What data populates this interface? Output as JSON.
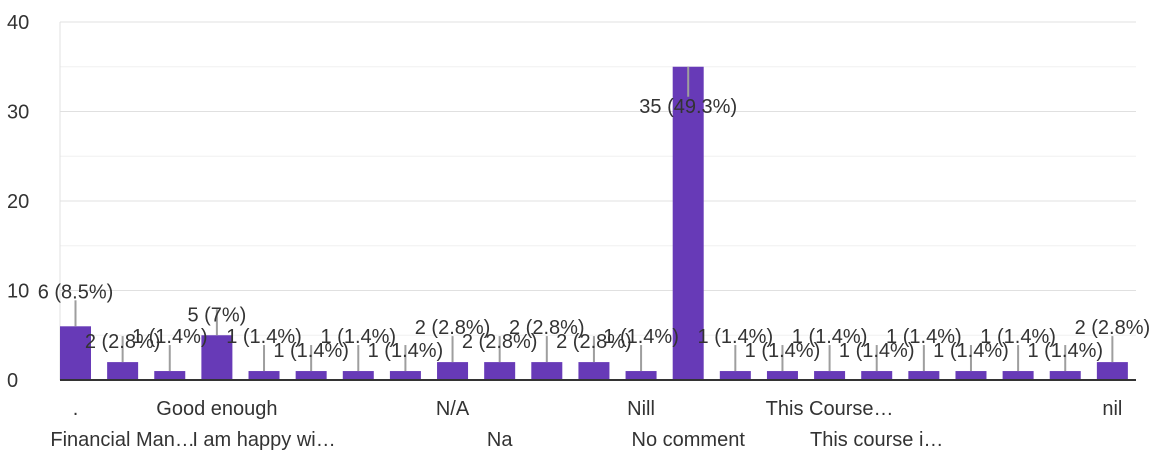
{
  "chart_data": {
    "type": "bar",
    "title": "",
    "xlabel": "",
    "ylabel": "",
    "ylim": [
      0,
      40
    ],
    "yticks": [
      0,
      10,
      20,
      30,
      40
    ],
    "grid": true,
    "bar_color": "#673ab7",
    "categories": [
      ".",
      "Financial Man…",
      "",
      "Good enough",
      "I am happy wi…",
      "",
      "",
      "",
      "N/A",
      "Na",
      "",
      "",
      "Nill",
      "No comment",
      "",
      "",
      "This Course…",
      "This course i…",
      "",
      "",
      "",
      "",
      "nil"
    ],
    "axis_category_labels": [
      ".",
      "Financial Man…",
      "Good enough",
      "I am happy wi…",
      "N/A",
      "Na",
      "Nill",
      "No comment",
      "This Course…",
      "This course i…",
      "nil"
    ],
    "values": [
      6,
      2,
      1,
      5,
      1,
      1,
      1,
      1,
      2,
      2,
      2,
      2,
      1,
      35,
      1,
      1,
      1,
      1,
      1,
      1,
      1,
      1,
      2
    ],
    "data_labels": [
      "6 (8.5%)",
      "2 (2.8%)",
      "1 (1.4%)",
      "5 (7%)",
      "1 (1.4%)",
      "1 (1.4%)",
      "1 (1.4%)",
      "1 (1.4%)",
      "2 (2.8%)",
      "2 (2.8%)",
      "2 (2.8%)",
      "2 (2.8%)",
      "1 (1.4%)",
      "35 (49.3%)",
      "1 (1.4%)",
      "1 (1.4%)",
      "1 (1.4%)",
      "1 (1.4%)",
      "1 (1.4%)",
      "1 (1.4%)",
      "1 (1.4%)",
      "1 (1.4%)",
      "2 (2.8%)"
    ]
  }
}
